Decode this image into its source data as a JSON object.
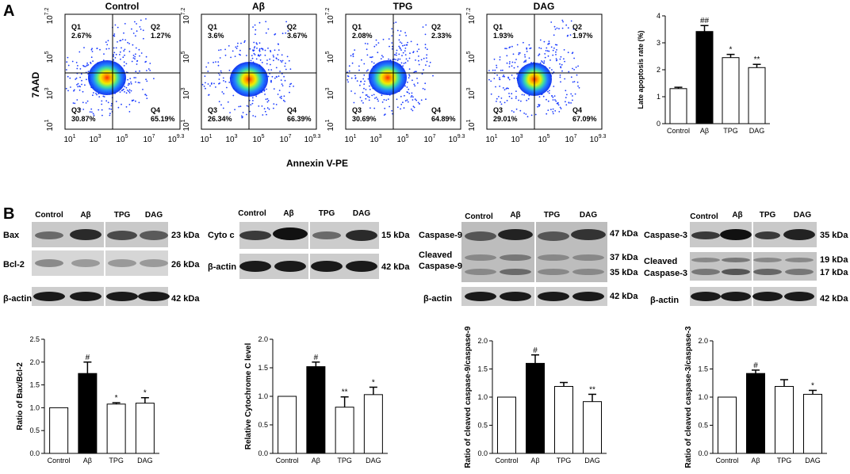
{
  "panel_a": {
    "label": "A",
    "flow_plots": [
      {
        "title": "Control",
        "q1": "Q1",
        "q1_val": "2.67%",
        "q2": "Q2",
        "q2_val": "1.27%",
        "q3": "Q3",
        "q3_val": "30.87%",
        "q4": "Q4",
        "q4_val": "65.19%"
      },
      {
        "title": "Aβ",
        "q1": "Q1",
        "q1_val": "3.6%",
        "q2": "Q2",
        "q2_val": "3.67%",
        "q3": "Q3",
        "q3_val": "26.34%",
        "q4": "Q4",
        "q4_val": "66.39%"
      },
      {
        "title": "TPG",
        "q1": "Q1",
        "q1_val": "2.08%",
        "q2": "Q2",
        "q2_val": "2.33%",
        "q3": "Q3",
        "q3_val": "30.69%",
        "q4": "Q4",
        "q4_val": "64.89%"
      },
      {
        "title": "DAG",
        "q1": "Q1",
        "q1_val": "1.93%",
        "q2": "Q2",
        "q2_val": "1.97%",
        "q3": "Q3",
        "q3_val": "29.01%",
        "q4": "Q4",
        "q4_val": "67.09%"
      }
    ],
    "y_axis_label": "7AAD",
    "x_axis_label": "Annexin V-PE",
    "y_ticks": [
      {
        "base": "10",
        "exp": "1"
      },
      {
        "base": "10",
        "exp": "3"
      },
      {
        "base": "10",
        "exp": "5"
      },
      {
        "base": "10",
        "exp": "7.2"
      }
    ],
    "x_ticks": [
      {
        "base": "10",
        "exp": "1"
      },
      {
        "base": "10",
        "exp": "3"
      },
      {
        "base": "10",
        "exp": "5"
      },
      {
        "base": "10",
        "exp": "7"
      },
      {
        "base": "10",
        "exp": "9.3"
      }
    ]
  },
  "panel_b": {
    "label": "B",
    "blot_groups": [
      {
        "lanes": [
          "Control",
          "Aβ",
          "TPG",
          "DAG"
        ],
        "rows": [
          {
            "name": "Bax",
            "kda": "23 kDa"
          },
          {
            "name": "Bcl-2",
            "kda": "26 kDa"
          },
          {
            "name": "β-actin",
            "kda": "42 kDa"
          }
        ]
      },
      {
        "lanes": [
          "Control",
          "Aβ",
          "TPG",
          "DAG"
        ],
        "rows": [
          {
            "name": "Cyto c",
            "kda": "15 kDa"
          },
          {
            "name": "β-actin",
            "kda": "42 kDa"
          }
        ]
      },
      {
        "lanes": [
          "Control",
          "Aβ",
          "TPG",
          "DAG"
        ],
        "rows": [
          {
            "name": "Caspase-9",
            "kda": "47 kDa"
          },
          {
            "name": "Cleaved",
            "kda": "37 kDa"
          },
          {
            "name": "Caspase-9",
            "kda": "35 kDa"
          },
          {
            "name": "β-actin",
            "kda": "42 kDa"
          }
        ]
      },
      {
        "lanes": [
          "Control",
          "Aβ",
          "TPG",
          "DAG"
        ],
        "rows": [
          {
            "name": "Caspase-3",
            "kda": "35 kDa"
          },
          {
            "name": "Cleaved",
            "kda": "19 kDa"
          },
          {
            "name": "Caspase-3",
            "kda": "17 kDa"
          },
          {
            "name": "β-actin",
            "kda": "42 kDa"
          }
        ]
      }
    ]
  },
  "colors": {
    "bar_ab": "#000000",
    "bar_other": "#ffffff",
    "axis": "#000000"
  },
  "chart_data": [
    {
      "type": "bar",
      "categories": [
        "Control",
        "Aβ",
        "TPG",
        "DAG"
      ],
      "values": [
        1.3,
        3.42,
        2.45,
        2.08
      ],
      "errors": [
        0.05,
        0.22,
        0.12,
        0.12
      ],
      "annotations": [
        "",
        "##",
        "*",
        "**"
      ],
      "ylabel": "Late apoptosis rate (%)",
      "ylim": [
        0,
        4
      ],
      "yticks": [
        "0",
        "1",
        "2",
        "3",
        "4"
      ]
    },
    {
      "type": "bar",
      "categories": [
        "Control",
        "Aβ",
        "TPG",
        "DAG"
      ],
      "values": [
        1.0,
        1.75,
        1.08,
        1.1
      ],
      "errors": [
        0,
        0.25,
        0.03,
        0.12
      ],
      "annotations": [
        "",
        "#",
        "*",
        "*"
      ],
      "ylabel": "Ratio of Bax/Bcl-2",
      "ylim": [
        0,
        2.5
      ],
      "yticks": [
        "0.0",
        "0.5",
        "1.0",
        "1.5",
        "2.0",
        "2.5"
      ]
    },
    {
      "type": "bar",
      "categories": [
        "Control",
        "Aβ",
        "TPG",
        "DAG"
      ],
      "values": [
        1.0,
        1.52,
        0.81,
        1.03
      ],
      "errors": [
        0,
        0.08,
        0.18,
        0.13
      ],
      "annotations": [
        "",
        "#",
        "**",
        "*"
      ],
      "ylabel": "Relative Cytochrome C level",
      "ylim": [
        0,
        2.0
      ],
      "yticks": [
        "0.0",
        "0.5",
        "1.0",
        "1.5",
        "2.0"
      ]
    },
    {
      "type": "bar",
      "categories": [
        "Control",
        "Aβ",
        "TPG",
        "DAG"
      ],
      "values": [
        1.0,
        1.6,
        1.19,
        0.92
      ],
      "errors": [
        0,
        0.15,
        0.07,
        0.13
      ],
      "annotations": [
        "",
        "#",
        "",
        "**"
      ],
      "ylabel": "Ratio of cleaved caspase-9/caspase-9",
      "ylim": [
        0,
        2.0
      ],
      "yticks": [
        "0.0",
        "0.5",
        "1.0",
        "1.5",
        "2.0"
      ]
    },
    {
      "type": "bar",
      "categories": [
        "Control",
        "Aβ",
        "TPG",
        "DAG"
      ],
      "values": [
        1.0,
        1.42,
        1.19,
        1.05
      ],
      "errors": [
        0,
        0.06,
        0.12,
        0.07
      ],
      "annotations": [
        "",
        "#",
        "",
        "*"
      ],
      "ylabel": "Ratio of cleaved caspase-3/caspase-3",
      "ylim": [
        0,
        2.0
      ],
      "yticks": [
        "0.0",
        "0.5",
        "1.0",
        "1.5",
        "2.0"
      ]
    }
  ]
}
